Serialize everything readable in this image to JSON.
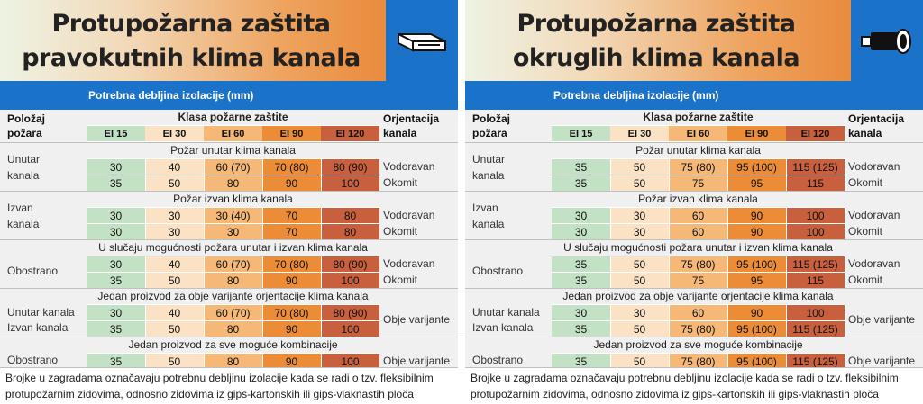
{
  "header_row": {
    "position_label": "Položaj požara",
    "class_label": "Klasa požarne zaštite",
    "orientation_label": "Orjentacija kanala",
    "classes": [
      "EI 15",
      "EI 30",
      "EI 60",
      "EI 90",
      "EI 120"
    ]
  },
  "blue_bar": "Potrebna debljina izolacije (mm)",
  "colors": {
    "header_blue": "#1a73c9",
    "ei15": "#c3e1c5",
    "ei30": "#fbe2c4",
    "ei60": "#f5b877",
    "ei90": "#ec8c37",
    "ei120": "#c9603d"
  },
  "panels": [
    {
      "title_line1": "Protupožarna zaštita",
      "title_line2": "pravokutnih klima kanala",
      "icon": "rectangular-duct-icon",
      "groups": [
        {
          "subtitle": "Požar unutar klima kanala",
          "label_line1": "Unutar",
          "label_line2": "kanala",
          "rows": [
            {
              "values": [
                "30",
                "40",
                "60 (70)",
                "70 (80)",
                "80 (90)"
              ],
              "orientation": "Vodoravan"
            },
            {
              "values": [
                "35",
                "50",
                "80",
                "90",
                "100"
              ],
              "orientation": "Okomit"
            }
          ]
        },
        {
          "subtitle": "Požar izvan klima kanala",
          "label_line1": "Izvan",
          "label_line2": "kanala",
          "rows": [
            {
              "values": [
                "30",
                "30",
                "30 (40)",
                "70",
                "80"
              ],
              "orientation": "Vodoravan"
            },
            {
              "values": [
                "30",
                "30",
                "30",
                "70",
                "80"
              ],
              "orientation": "Okomit"
            }
          ]
        },
        {
          "subtitle": "U slučaju mogućnosti požara unutar i izvan klima kanala",
          "label_line1": "Obostrano",
          "label_line2": "",
          "rows": [
            {
              "values": [
                "30",
                "40",
                "60 (70)",
                "70 (80)",
                "80 (90)"
              ],
              "orientation": "Vodoravan"
            },
            {
              "values": [
                "35",
                "50",
                "80",
                "90",
                "100"
              ],
              "orientation": "Okomit"
            }
          ]
        },
        {
          "subtitle": "Jedan proizvod za obje varijante orjentacije klima kanala",
          "label_line1": "Unutar kanala",
          "label_line2": "Izvan kanala",
          "orientation": "Obje varijante",
          "rows": [
            {
              "values": [
                "30",
                "40",
                "60 (70)",
                "70 (80)",
                "80 (90)"
              ]
            },
            {
              "values": [
                "35",
                "50",
                "80",
                "90",
                "100"
              ]
            }
          ]
        },
        {
          "subtitle": "Jedan proizvod za sve moguće kombinacije",
          "label_line1": "Obostrano",
          "label_line2": "",
          "rows": [
            {
              "values": [
                "35",
                "50",
                "80",
                "90",
                "100"
              ],
              "orientation": "Obje varijante"
            }
          ]
        }
      ],
      "note_line1": "Brojke u zagradama označavaju potrebnu debljinu izolacije kada se radi o tzv. fleksibilnim",
      "note_line2": "protupožarnim zidovima, odnosno zidovima iz gips-kartonskih ili gips-vlaknastih ploča"
    },
    {
      "title_line1": "Protupožarna zaštita",
      "title_line2": "okruglih klima kanala",
      "icon": "round-duct-icon",
      "groups": [
        {
          "subtitle": "Požar unutar klima kanala",
          "label_line1": "Unutar",
          "label_line2": "kanala",
          "rows": [
            {
              "values": [
                "35",
                "50",
                "75 (80)",
                "95 (100)",
                "115 (125)"
              ],
              "orientation": "Vodoravan"
            },
            {
              "values": [
                "35",
                "50",
                "75",
                "95",
                "115"
              ],
              "orientation": "Okomit"
            }
          ]
        },
        {
          "subtitle": "Požar izvan klima kanala",
          "label_line1": "Izvan",
          "label_line2": "kanala",
          "rows": [
            {
              "values": [
                "30",
                "30",
                "60",
                "90",
                "100"
              ],
              "orientation": "Vodoravan"
            },
            {
              "values": [
                "30",
                "30",
                "60",
                "90",
                "100"
              ],
              "orientation": "Okomit"
            }
          ]
        },
        {
          "subtitle": "U slučaju mogućnosti požara unutar i izvan klima kanala",
          "label_line1": "Obostrano",
          "label_line2": "",
          "rows": [
            {
              "values": [
                "35",
                "50",
                "75 (80)",
                "95 (100)",
                "115 (125)"
              ],
              "orientation": "Vodoravan"
            },
            {
              "values": [
                "35",
                "50",
                "75",
                "95",
                "115"
              ],
              "orientation": "Okomit"
            }
          ]
        },
        {
          "subtitle": "Jedan proizvod za obje varijante orjentacije klima kanala",
          "label_line1": "Unutar kanala",
          "label_line2": "Izvan kanala",
          "orientation": "Obje varijante",
          "rows": [
            {
              "values": [
                "30",
                "30",
                "60",
                "90",
                "100"
              ]
            },
            {
              "values": [
                "35",
                "50",
                "75 (80)",
                "95 (100)",
                "115 (125)"
              ]
            }
          ]
        },
        {
          "subtitle": "Jedan proizvod za sve moguće kombinacije",
          "label_line1": "Obostrano",
          "label_line2": "",
          "rows": [
            {
              "values": [
                "35",
                "50",
                "75 (80)",
                "95 (100)",
                "115 (125)"
              ],
              "orientation": "Obje varijante"
            }
          ]
        }
      ],
      "note_line1": "Brojke u zagradama označavaju potrebnu debljinu izolacije kada se radi o tzv. fleksibilnim",
      "note_line2": "protupožarnim zidovima, odnosno zidovima iz gips-kartonskih ili gips-vlaknastih ploča"
    }
  ]
}
